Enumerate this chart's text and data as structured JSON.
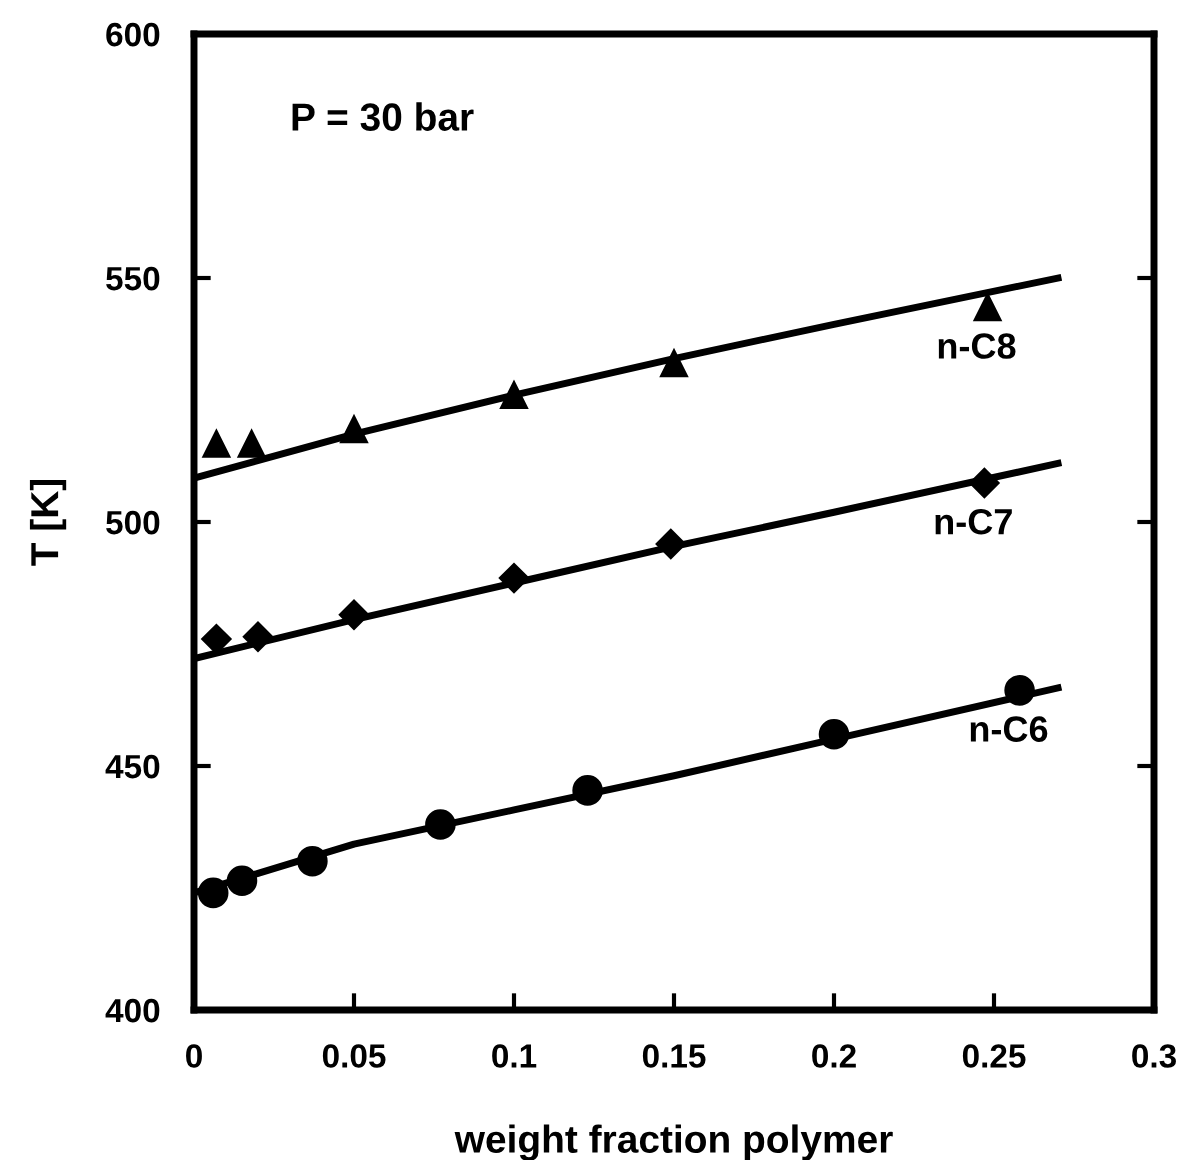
{
  "chart_data": {
    "type": "scatter",
    "xlabel": "weight fraction polymer",
    "ylabel": "T [K]",
    "xlim": [
      0,
      0.3
    ],
    "ylim": [
      400,
      600
    ],
    "xticks": [
      0,
      0.05,
      0.1,
      0.15,
      0.2,
      0.25,
      0.3
    ],
    "yticks": [
      400,
      450,
      500,
      550,
      600
    ],
    "grid": false,
    "annotations": [
      "P = 30 bar"
    ],
    "series": [
      {
        "name": "n-C8",
        "marker": "triangle",
        "color": "#000000",
        "x": [
          0.007,
          0.018,
          0.05,
          0.1,
          0.15,
          0.248
        ],
        "values": [
          516,
          516,
          519,
          526,
          532.5,
          544
        ]
      },
      {
        "name": "n-C7",
        "marker": "diamond",
        "color": "#000000",
        "x": [
          0.007,
          0.02,
          0.05,
          0.1,
          0.149,
          0.247
        ],
        "values": [
          476,
          476.5,
          481,
          488.5,
          495.5,
          508
        ]
      },
      {
        "name": "n-C6",
        "marker": "circle",
        "color": "#000000",
        "x": [
          0.006,
          0.015,
          0.037,
          0.077,
          0.123,
          0.2,
          0.258
        ],
        "values": [
          424,
          426.5,
          430.5,
          438,
          445,
          456.5,
          465.5
        ]
      },
      {
        "type": "line",
        "marker": "none",
        "line_style": "solid",
        "color": "#000000",
        "x": [
          0,
          0.05,
          0.1,
          0.15,
          0.2,
          0.27
        ],
        "values": [
          509,
          518,
          526,
          533.5,
          540.5,
          550
        ]
      },
      {
        "type": "line",
        "marker": "none",
        "line_style": "solid",
        "color": "#000000",
        "x": [
          0,
          0.05,
          0.1,
          0.15,
          0.2,
          0.27
        ],
        "values": [
          472,
          480,
          487.5,
          495,
          502,
          512
        ]
      },
      {
        "type": "line",
        "marker": "none",
        "line_style": "solid",
        "color": "#000000",
        "x": [
          0,
          0.02,
          0.05,
          0.1,
          0.15,
          0.2,
          0.27
        ],
        "values": [
          424,
          428,
          434,
          441,
          448,
          455.5,
          466
        ]
      }
    ]
  }
}
